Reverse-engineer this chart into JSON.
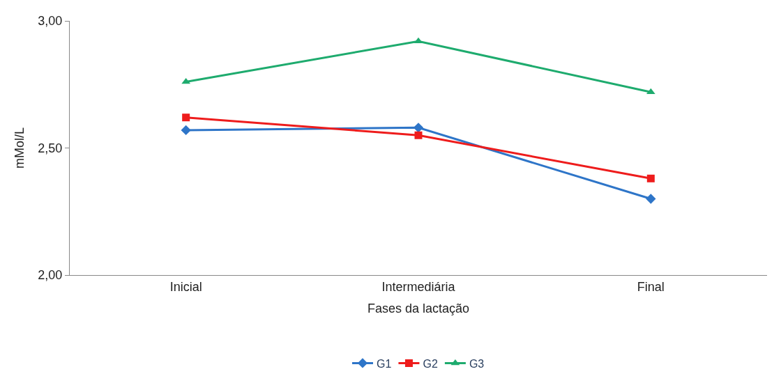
{
  "chart_data": {
    "type": "line",
    "xlabel": "Fases da lactação",
    "ylabel": "mMol/L",
    "categories": [
      "Inicial",
      "Intermediária",
      "Final"
    ],
    "series": [
      {
        "name": "G1",
        "color": "#2e75c8",
        "marker": "diamond",
        "values": [
          2.57,
          2.58,
          2.3
        ]
      },
      {
        "name": "G2",
        "color": "#ee1c1c",
        "marker": "square",
        "values": [
          2.62,
          2.55,
          2.38
        ]
      },
      {
        "name": "G3",
        "color": "#1eab6e",
        "marker": "triangle",
        "values": [
          2.76,
          2.92,
          2.72
        ]
      }
    ],
    "ylim": [
      2,
      3
    ],
    "yticks": [
      {
        "value": 2,
        "label": "2,00"
      },
      {
        "value": 2.5,
        "label": "2,50"
      },
      {
        "value": 3,
        "label": "3,00"
      }
    ],
    "grid": false,
    "legend": "bottom",
    "line_style": "solid"
  }
}
